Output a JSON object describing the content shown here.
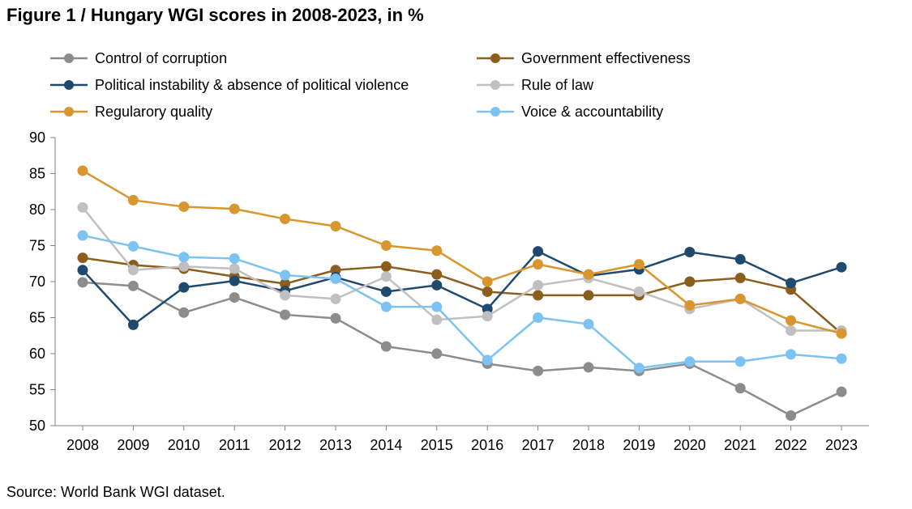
{
  "chart_data": {
    "type": "line",
    "title": "Figure 1 / Hungary WGI scores in 2008-2023, in %",
    "source": "Source: World Bank WGI dataset.",
    "xlabel": "",
    "ylabel": "",
    "ylim": [
      50,
      90
    ],
    "yticks": [
      50,
      55,
      60,
      65,
      70,
      75,
      80,
      85,
      90
    ],
    "grid": false,
    "legend_position": "top",
    "categories": [
      "2008",
      "2009",
      "2010",
      "2011",
      "2012",
      "2013",
      "2014",
      "2015",
      "2016",
      "2017",
      "2018",
      "2019",
      "2020",
      "2021",
      "2022",
      "2023"
    ],
    "series": [
      {
        "name": "Control of corruption",
        "color": "#8c8c8c",
        "values": [
          69.9,
          69.4,
          65.7,
          67.8,
          65.4,
          64.9,
          61.0,
          60.0,
          58.6,
          57.6,
          58.1,
          57.6,
          58.6,
          55.2,
          51.4,
          54.7
        ]
      },
      {
        "name": "Government effectiveness",
        "color": "#8c5e1e",
        "values": [
          73.3,
          72.3,
          71.8,
          70.7,
          69.7,
          71.6,
          72.1,
          71.0,
          68.6,
          68.1,
          68.1,
          68.1,
          70.0,
          70.5,
          68.9,
          62.8
        ]
      },
      {
        "name": "Political instability & absence of political violence",
        "color": "#1f4a6e",
        "values": [
          71.6,
          64.0,
          69.2,
          70.1,
          68.7,
          70.6,
          68.6,
          69.5,
          66.2,
          74.2,
          70.8,
          71.7,
          74.1,
          73.1,
          69.8,
          72.0
        ]
      },
      {
        "name": "Rule of law",
        "color": "#c0c0c0",
        "values": [
          80.3,
          71.6,
          72.1,
          71.8,
          68.1,
          67.6,
          70.7,
          64.7,
          65.2,
          69.5,
          70.5,
          68.6,
          66.2,
          67.6,
          63.2,
          63.2
        ]
      },
      {
        "name": "Regularory quality",
        "color": "#d9962e",
        "values": [
          85.4,
          81.3,
          80.4,
          80.1,
          78.7,
          77.7,
          75.0,
          74.3,
          70.0,
          72.4,
          71.0,
          72.4,
          66.7,
          67.6,
          64.6,
          62.8
        ]
      },
      {
        "name": "Voice & accountability",
        "color": "#7cc3f3",
        "values": [
          76.4,
          74.9,
          73.4,
          73.2,
          70.9,
          70.4,
          66.5,
          66.5,
          59.1,
          65.0,
          64.1,
          58.0,
          58.9,
          58.9,
          59.9,
          59.3
        ]
      }
    ]
  }
}
